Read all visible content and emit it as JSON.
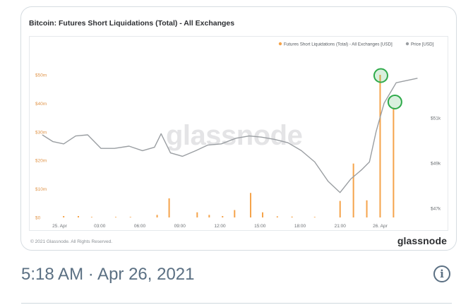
{
  "tweet": {
    "timestamp": "5:18 AM · Apr 26, 2021",
    "info_glyph": "i"
  },
  "card": {
    "copyright": "© 2021 Glassnode. All Rights Reserved.",
    "brand": "glassnode",
    "watermark": "glassnode"
  },
  "colors": {
    "bars": "#f5a34a",
    "price_line": "#9a9ea2",
    "highlight_circle": "#2eaa4a",
    "left_axis_text": "#e0954a",
    "right_axis_text": "#6b6f73"
  },
  "chart_data": {
    "type": "bar",
    "title": "Bitcoin: Futures Short Liquidations (Total) - All Exchanges",
    "legend_placement": "top-right",
    "legend": [
      {
        "name": "Futures Short Liquidations (Total) - All Exchanges [USD]",
        "color": "#f5a34a"
      },
      {
        "name": "Price [USD]",
        "color": "#9a9ea2"
      }
    ],
    "y_left": {
      "ticks": [
        "$0",
        "$10m",
        "$20m",
        "$30m",
        "$40m",
        "$50m"
      ],
      "range": [
        0,
        50
      ]
    },
    "y_right": {
      "ticks": [
        "$47k",
        "$49k",
        "$51k"
      ],
      "range": [
        46600,
        52900
      ]
    },
    "x_ticks": [
      "25. Apr",
      "03:00",
      "06:00",
      "09:00",
      "12:00",
      "15:00",
      "18:00",
      "21:00",
      "26. Apr"
    ],
    "x_tick_hours": [
      0,
      3,
      6,
      9,
      12,
      15,
      18,
      21,
      24
    ],
    "x_range_hours": [
      -1.4,
      27.2
    ],
    "grid": false,
    "series": [
      {
        "name": "Futures Short Liquidations (Total) - All Exchanges [USD]",
        "type": "bar",
        "unit": "million USD",
        "points": [
          [
            0.3,
            0.5
          ],
          [
            1.4,
            0.5
          ],
          [
            2.4,
            0.2
          ],
          [
            4.2,
            0.2
          ],
          [
            5.3,
            0.2
          ],
          [
            7.3,
            0.9
          ],
          [
            8.2,
            6.7
          ],
          [
            10.3,
            1.8
          ],
          [
            11.2,
            0.9
          ],
          [
            12.2,
            0.5
          ],
          [
            13.1,
            2.6
          ],
          [
            14.3,
            8.6
          ],
          [
            15.2,
            1.8
          ],
          [
            16.3,
            0.4
          ],
          [
            17.4,
            0.3
          ],
          [
            19.1,
            0.2
          ],
          [
            21.0,
            5.8
          ],
          [
            22.0,
            18.9
          ],
          [
            23.0,
            6.0
          ],
          [
            24.0,
            50.0
          ],
          [
            25.0,
            38.5
          ]
        ]
      },
      {
        "name": "Price [USD]",
        "type": "line",
        "unit": "USD",
        "points": [
          [
            -1.3,
            50250
          ],
          [
            -0.5,
            49950
          ],
          [
            0.3,
            49850
          ],
          [
            1.2,
            50200
          ],
          [
            2.1,
            50250
          ],
          [
            3.1,
            49650
          ],
          [
            4.1,
            49650
          ],
          [
            5.2,
            49750
          ],
          [
            6.2,
            49550
          ],
          [
            7.1,
            49700
          ],
          [
            7.6,
            50300
          ],
          [
            8.3,
            49450
          ],
          [
            9.2,
            49300
          ],
          [
            10.2,
            49550
          ],
          [
            11.1,
            49800
          ],
          [
            12.1,
            49850
          ],
          [
            13.2,
            50100
          ],
          [
            14.2,
            50200
          ],
          [
            15.1,
            50150
          ],
          [
            16.1,
            50050
          ],
          [
            17.1,
            49900
          ],
          [
            18.1,
            49550
          ],
          [
            19.1,
            49050
          ],
          [
            20.1,
            48200
          ],
          [
            21.0,
            47700
          ],
          [
            21.8,
            48300
          ],
          [
            22.6,
            48700
          ],
          [
            23.2,
            49050
          ],
          [
            23.7,
            50400
          ],
          [
            24.3,
            51650
          ],
          [
            25.2,
            52550
          ],
          [
            26.8,
            52750
          ]
        ]
      }
    ],
    "highlighted_bars": [
      19,
      20
    ]
  }
}
